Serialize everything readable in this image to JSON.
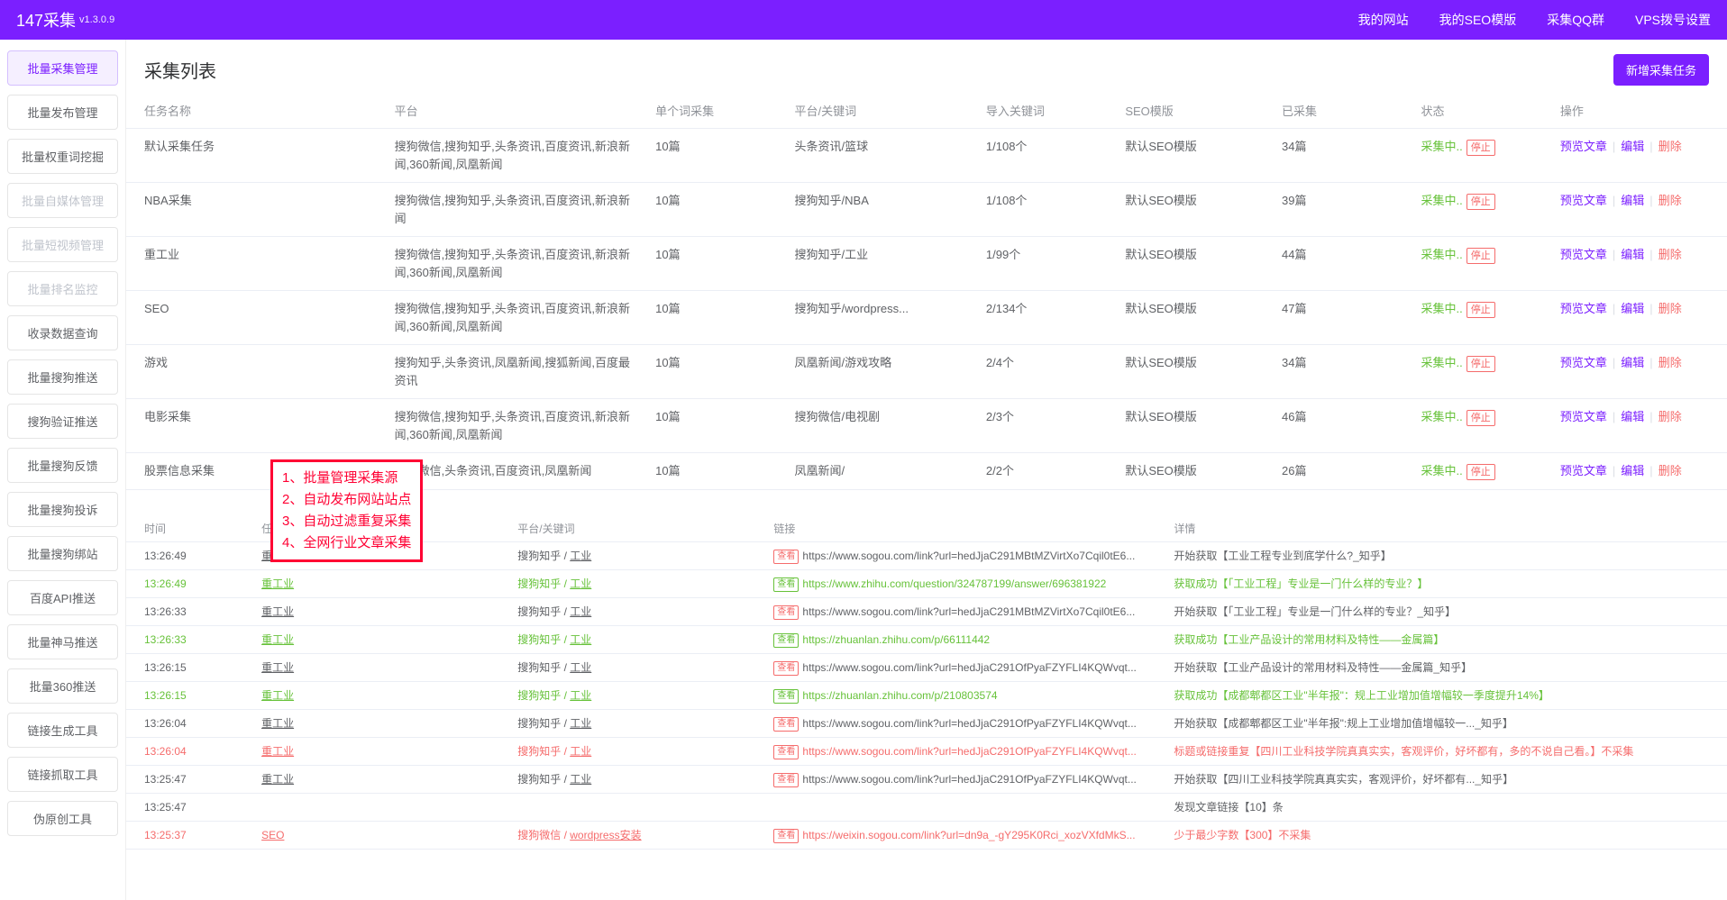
{
  "brand": "147采集",
  "version": "v1.3.0.9",
  "topnav": [
    "我的网站",
    "我的SEO模版",
    "采集QQ群",
    "VPS拨号设置"
  ],
  "sidebar": [
    {
      "label": "批量采集管理",
      "state": "active"
    },
    {
      "label": "批量发布管理",
      "state": ""
    },
    {
      "label": "批量权重词挖掘",
      "state": ""
    },
    {
      "label": "批量自媒体管理",
      "state": "disabled"
    },
    {
      "label": "批量短视频管理",
      "state": "disabled"
    },
    {
      "label": "批量排名监控",
      "state": "disabled"
    },
    {
      "label": "收录数据查询",
      "state": ""
    },
    {
      "label": "批量搜狗推送",
      "state": ""
    },
    {
      "label": "搜狗验证推送",
      "state": ""
    },
    {
      "label": "批量搜狗反馈",
      "state": ""
    },
    {
      "label": "批量搜狗投诉",
      "state": ""
    },
    {
      "label": "批量搜狗绑站",
      "state": ""
    },
    {
      "label": "百度API推送",
      "state": ""
    },
    {
      "label": "批量神马推送",
      "state": ""
    },
    {
      "label": "批量360推送",
      "state": ""
    },
    {
      "label": "链接生成工具",
      "state": ""
    },
    {
      "label": "链接抓取工具",
      "state": ""
    },
    {
      "label": "伪原创工具",
      "state": ""
    }
  ],
  "list_title": "采集列表",
  "add_btn": "新增采集任务",
  "task_headers": [
    "任务名称",
    "平台",
    "单个词采集",
    "平台/关键词",
    "导入关键词",
    "SEO模版",
    "已采集",
    "状态",
    "操作"
  ],
  "status_labels": {
    "running": "采集中..",
    "stop": "停止"
  },
  "op_labels": {
    "preview": "预览文章",
    "edit": "编辑",
    "delete": "删除"
  },
  "tasks": [
    {
      "name": "默认采集任务",
      "platform": "搜狗微信,搜狗知乎,头条资讯,百度资讯,新浪新闻,360新闻,凤凰新闻",
      "per": "10篇",
      "kw": "头条资讯/篮球",
      "imp": "1/108个",
      "tpl": "默认SEO模版",
      "cnt": "34篇"
    },
    {
      "name": "NBA采集",
      "platform": "搜狗微信,搜狗知乎,头条资讯,百度资讯,新浪新闻",
      "per": "10篇",
      "kw": "搜狗知乎/NBA",
      "imp": "1/108个",
      "tpl": "默认SEO模版",
      "cnt": "39篇"
    },
    {
      "name": "重工业",
      "platform": "搜狗微信,搜狗知乎,头条资讯,百度资讯,新浪新闻,360新闻,凤凰新闻",
      "per": "10篇",
      "kw": "搜狗知乎/工业",
      "imp": "1/99个",
      "tpl": "默认SEO模版",
      "cnt": "44篇"
    },
    {
      "name": "SEO",
      "platform": "搜狗微信,搜狗知乎,头条资讯,百度资讯,新浪新闻,360新闻,凤凰新闻",
      "per": "10篇",
      "kw": "搜狗知乎/wordpress...",
      "imp": "2/134个",
      "tpl": "默认SEO模版",
      "cnt": "47篇"
    },
    {
      "name": "游戏",
      "platform": "搜狗知乎,头条资讯,凤凰新闻,搜狐新闻,百度最资讯",
      "per": "10篇",
      "kw": "凤凰新闻/游戏攻略",
      "imp": "2/4个",
      "tpl": "默认SEO模版",
      "cnt": "34篇"
    },
    {
      "name": "电影采集",
      "platform": "搜狗微信,搜狗知乎,头条资讯,百度资讯,新浪新闻,360新闻,凤凰新闻",
      "per": "10篇",
      "kw": "搜狗微信/电视剧",
      "imp": "2/3个",
      "tpl": "默认SEO模版",
      "cnt": "46篇"
    },
    {
      "name": "股票信息采集",
      "platform": "搜狗微信,头条资讯,百度资讯,凤凰新闻",
      "per": "10篇",
      "kw": "凤凰新闻/",
      "imp": "2/2个",
      "tpl": "默认SEO模版",
      "cnt": "26篇"
    }
  ],
  "log_headers": [
    "时间",
    "任务名称",
    "平台/关键词",
    "链接",
    "详情"
  ],
  "log_tag": "查看",
  "logs": [
    {
      "time": "13:26:49",
      "task": "重工业",
      "plat": "搜狗知乎",
      "kw": "工业",
      "link": "https://www.sogou.com/link?url=hedJjaC291MBtMZVirtXo7Cqil0tE6...",
      "detail": "开始获取【工业工程专业到底学什么?_知乎】",
      "cls": ""
    },
    {
      "time": "13:26:49",
      "task": "重工业",
      "plat": "搜狗知乎",
      "kw": "工业",
      "link": "https://www.zhihu.com/question/324787199/answer/696381922",
      "detail": "获取成功【「工业工程」专业是一门什么样的专业？】",
      "cls": "row-green"
    },
    {
      "time": "13:26:33",
      "task": "重工业",
      "plat": "搜狗知乎",
      "kw": "工业",
      "link": "https://www.sogou.com/link?url=hedJjaC291MBtMZVirtXo7Cqil0tE6...",
      "detail": "开始获取【「工业工程」专业是一门什么样的专业？_知乎】",
      "cls": ""
    },
    {
      "time": "13:26:33",
      "task": "重工业",
      "plat": "搜狗知乎",
      "kw": "工业",
      "link": "https://zhuanlan.zhihu.com/p/66111442",
      "detail": "获取成功【工业产品设计的常用材料及特性——金属篇】",
      "cls": "row-green"
    },
    {
      "time": "13:26:15",
      "task": "重工业",
      "plat": "搜狗知乎",
      "kw": "工业",
      "link": "https://www.sogou.com/link?url=hedJjaC291OfPyaFZYFLI4KQWvqt...",
      "detail": "开始获取【工业产品设计的常用材料及特性——金属篇_知乎】",
      "cls": ""
    },
    {
      "time": "13:26:15",
      "task": "重工业",
      "plat": "搜狗知乎",
      "kw": "工业",
      "link": "https://zhuanlan.zhihu.com/p/210803574",
      "detail": "获取成功【成都郫都区工业\"半年报\"：规上工业增加值增幅较一季度提升14%】",
      "cls": "row-green"
    },
    {
      "time": "13:26:04",
      "task": "重工业",
      "plat": "搜狗知乎",
      "kw": "工业",
      "link": "https://www.sogou.com/link?url=hedJjaC291OfPyaFZYFLI4KQWvqt...",
      "detail": "开始获取【成都郫都区工业\"半年报\":规上工业增加值增幅较一..._知乎】",
      "cls": ""
    },
    {
      "time": "13:26:04",
      "task": "重工业",
      "plat": "搜狗知乎",
      "kw": "工业",
      "link": "https://www.sogou.com/link?url=hedJjaC291OfPyaFZYFLI4KQWvqt...",
      "detail": "标题或链接重复【四川工业科技学院真真实实，客观评价，好坏都有，多的不说自己看。】不采集",
      "cls": "row-red"
    },
    {
      "time": "13:25:47",
      "task": "重工业",
      "plat": "搜狗知乎",
      "kw": "工业",
      "link": "https://www.sogou.com/link?url=hedJjaC291OfPyaFZYFLI4KQWvqt...",
      "detail": "开始获取【四川工业科技学院真真实实，客观评价，好坏都有..._知乎】",
      "cls": ""
    },
    {
      "time": "13:25:47",
      "task": "",
      "plat": "",
      "kw": "",
      "link": "",
      "detail": "发现文章链接【10】条",
      "cls": "",
      "no_link": true
    },
    {
      "time": "13:25:37",
      "task": "SEO",
      "plat": "搜狗微信",
      "kw": "wordpress安装",
      "link": "https://weixin.sogou.com/link?url=dn9a_-gY295K0Rci_xozVXfdMkS...",
      "detail": "少于最少字数【300】不采集",
      "cls": "row-red"
    }
  ],
  "annotation": [
    "1、批量管理采集源",
    "2、自动发布网站站点",
    "3、自动过滤重复采集",
    "4、全网行业文章采集"
  ],
  "colors": {
    "primary": "#7b1fff",
    "success": "#67c23a",
    "danger": "#f56c6c"
  }
}
